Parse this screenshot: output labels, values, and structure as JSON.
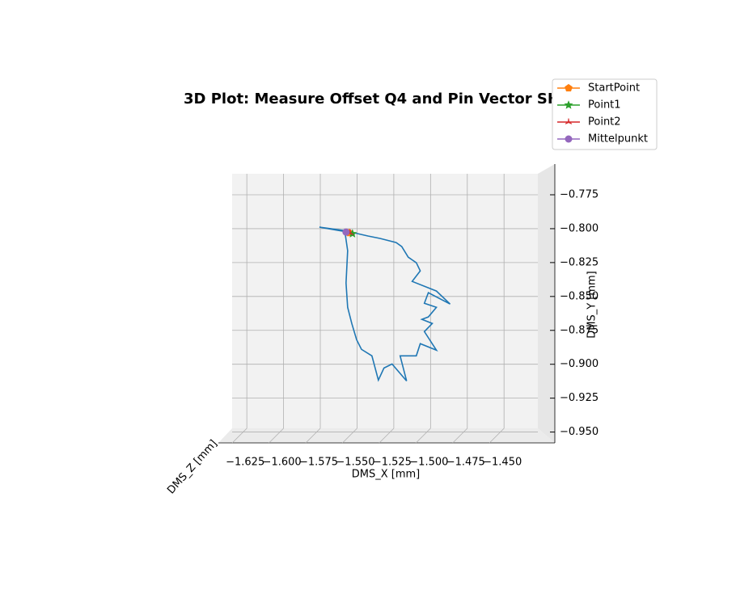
{
  "chart_data": {
    "type": "line3d",
    "title": "3D Plot: Measure Offset Q4 and Pin Vector SHZ",
    "xlabel": "DMS_X [mm]",
    "ylabel": "DMS_Y [mm]",
    "zlabel": "DMS_Z [mm]",
    "xlim": [
      -1.635,
      -1.427
    ],
    "ylim": [
      -0.958,
      -0.7595
    ],
    "xticks": [
      {
        "value": -1.625,
        "label": "−1.625"
      },
      {
        "value": -1.6,
        "label": "−1.600"
      },
      {
        "value": -1.575,
        "label": "−1.575"
      },
      {
        "value": -1.55,
        "label": "−1.550"
      },
      {
        "value": -1.525,
        "label": "−1.525"
      },
      {
        "value": -1.5,
        "label": "−1.500"
      },
      {
        "value": -1.475,
        "label": "−1.475"
      },
      {
        "value": -1.45,
        "label": "−1.450"
      }
    ],
    "yticks": [
      {
        "value": -0.775,
        "label": "−0.775"
      },
      {
        "value": -0.8,
        "label": "−0.800"
      },
      {
        "value": -0.825,
        "label": "−0.825"
      },
      {
        "value": -0.85,
        "label": "−0.850"
      },
      {
        "value": -0.875,
        "label": "−0.875"
      },
      {
        "value": -0.9,
        "label": "−0.900"
      },
      {
        "value": -0.925,
        "label": "−0.925"
      },
      {
        "value": -0.95,
        "label": "−0.950"
      }
    ],
    "grid": true,
    "legend": "upper right",
    "trace": {
      "color": "#1f77b4",
      "x": [
        -1.5564,
        -1.5756,
        -1.5591,
        -1.5426,
        -1.5344,
        -1.5234,
        -1.5196,
        -1.5152,
        -1.5097,
        -1.507,
        -1.5125,
        -1.496,
        -1.4867,
        -1.5015,
        -1.5042,
        -1.496,
        -1.5015,
        -1.5059,
        -1.4988,
        -1.5042,
        -1.496,
        -1.507,
        -1.5097,
        -1.5207,
        -1.5163,
        -1.5262,
        -1.5317,
        -1.5355,
        -1.5399,
        -1.547,
        -1.5503,
        -1.5536,
        -1.5564,
        -1.5575,
        -1.5564,
        -1.558
      ],
      "y": [
        -0.8025,
        -0.7989,
        -0.8013,
        -0.8054,
        -0.8072,
        -0.8102,
        -0.8132,
        -0.821,
        -0.8251,
        -0.8311,
        -0.8389,
        -0.846,
        -0.8556,
        -0.8472,
        -0.855,
        -0.858,
        -0.8651,
        -0.8669,
        -0.8699,
        -0.8759,
        -0.8896,
        -0.8848,
        -0.8938,
        -0.8938,
        -0.9123,
        -0.8998,
        -0.9028,
        -0.9117,
        -0.8938,
        -0.889,
        -0.8819,
        -0.8699,
        -0.858,
        -0.8401,
        -0.8162,
        -0.8043
      ]
    },
    "series": [
      {
        "name": "StartPoint",
        "color": "#ff7f0e",
        "marker": "pentagon",
        "x": [
          -1.5553
        ],
        "y": [
          -0.8031
        ]
      },
      {
        "name": "Point1",
        "color": "#2ca02c",
        "marker": "star",
        "x": [
          -1.5531
        ],
        "y": [
          -0.8037
        ]
      },
      {
        "name": "Point2",
        "color": "#d62728",
        "marker": "tri",
        "x": [
          -1.5547
        ],
        "y": [
          -0.8031
        ]
      },
      {
        "name": "Mittelpunkt",
        "color": "#9467bd",
        "marker": "circle",
        "x": [
          -1.5575
        ],
        "y": [
          -0.8025
        ]
      }
    ]
  }
}
